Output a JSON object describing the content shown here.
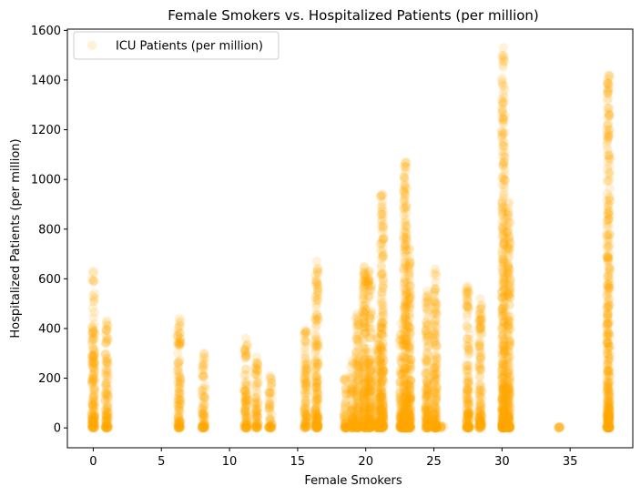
{
  "chart_data": {
    "type": "scatter",
    "title": "Female Smokers vs. Hospitalized Patients (per million)",
    "xlabel": "Female Smokers",
    "ylabel": "Hospitalized Patients (per million)",
    "xlim": [
      -1.9,
      39.6
    ],
    "ylim": [
      -80,
      1605
    ],
    "xticks": [
      0,
      5,
      10,
      15,
      20,
      25,
      30,
      35
    ],
    "yticks": [
      0,
      200,
      400,
      600,
      800,
      1000,
      1200,
      1400,
      1600
    ],
    "grid": false,
    "legend": {
      "placement": "top-left"
    },
    "series": [
      {
        "name": "ICU Patients (per million)",
        "color": "#FFA500",
        "opacity": 0.15,
        "columns": [
          {
            "x": 0.0,
            "max": 630
          },
          {
            "x": 1.0,
            "max": 430
          },
          {
            "x": 6.3,
            "max": 440
          },
          {
            "x": 8.1,
            "max": 300
          },
          {
            "x": 11.2,
            "max": 360
          },
          {
            "x": 12.0,
            "max": 285
          },
          {
            "x": 13.0,
            "max": 210
          },
          {
            "x": 15.6,
            "max": 390
          },
          {
            "x": 16.4,
            "max": 670
          },
          {
            "x": 18.5,
            "max": 200
          },
          {
            "x": 19.0,
            "max": 270
          },
          {
            "x": 19.4,
            "max": 460
          },
          {
            "x": 19.9,
            "max": 650
          },
          {
            "x": 20.3,
            "max": 630
          },
          {
            "x": 20.9,
            "max": 380
          },
          {
            "x": 21.2,
            "max": 940
          },
          {
            "x": 22.6,
            "max": 420
          },
          {
            "x": 22.9,
            "max": 1070
          },
          {
            "x": 23.2,
            "max": 720
          },
          {
            "x": 24.5,
            "max": 550
          },
          {
            "x": 25.1,
            "max": 640
          },
          {
            "x": 25.6,
            "max": 10
          },
          {
            "x": 27.5,
            "max": 570
          },
          {
            "x": 28.4,
            "max": 520
          },
          {
            "x": 30.1,
            "max": 1530
          },
          {
            "x": 30.5,
            "max": 910
          },
          {
            "x": 34.2,
            "max": 5
          },
          {
            "x": 37.8,
            "max": 1420
          }
        ]
      }
    ]
  }
}
